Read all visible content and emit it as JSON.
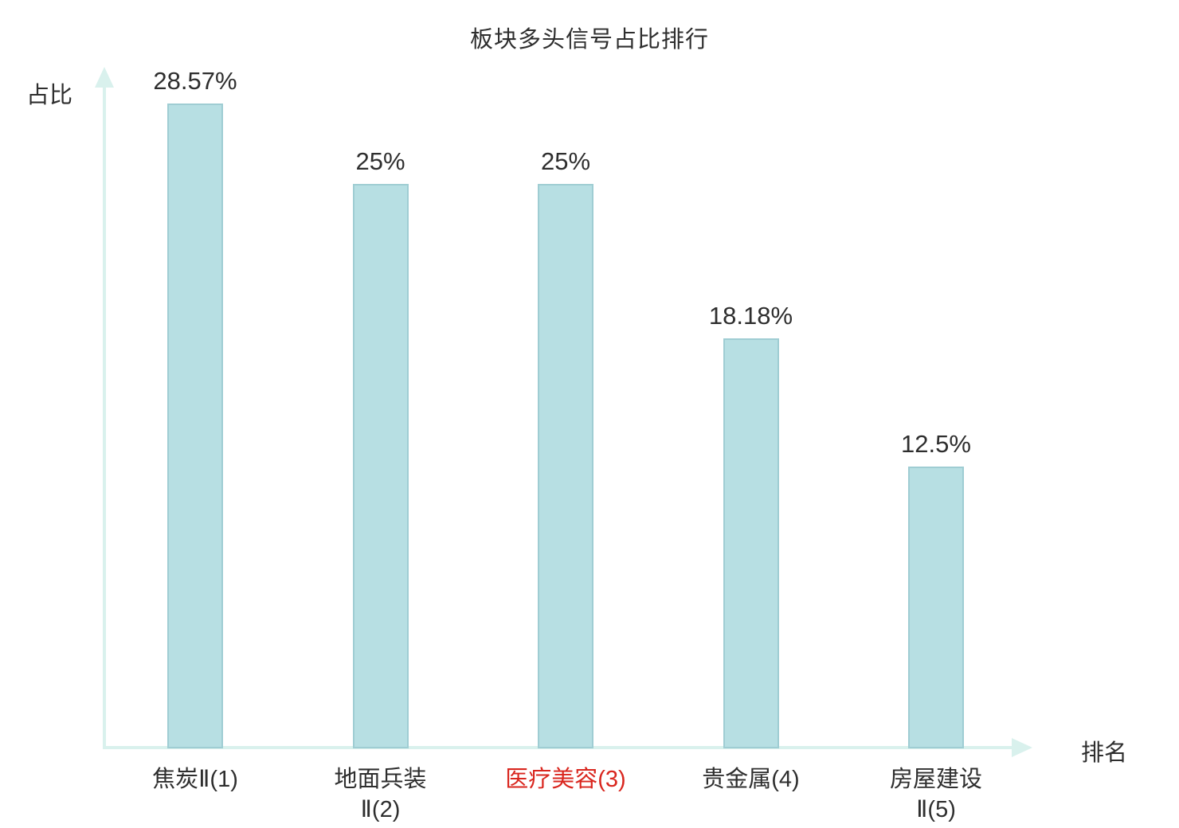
{
  "chart": {
    "title": "板块多头信号占比排行",
    "ylabel": "占比",
    "xlabel": "排名"
  },
  "chart_data": {
    "type": "bar",
    "title": "板块多头信号占比排行",
    "xlabel": "排名",
    "ylabel": "占比",
    "categories": [
      "焦炭Ⅱ(1)",
      "地面兵装Ⅱ(2)",
      "医疗美容(3)",
      "贵金属(4)",
      "房屋建设Ⅱ(5)"
    ],
    "category_lines": [
      [
        "焦炭Ⅱ(1)"
      ],
      [
        "地面兵装",
        "Ⅱ(2)"
      ],
      [
        "医疗美容(3)"
      ],
      [
        "贵金属(4)"
      ],
      [
        "房屋建设",
        "Ⅱ(5)"
      ]
    ],
    "values": [
      28.57,
      25,
      25,
      18.18,
      12.5
    ],
    "value_labels": [
      "28.57%",
      "25%",
      "25%",
      "18.18%",
      "12.5%"
    ],
    "highlight_index": 2,
    "highlight_color": "#d9261e",
    "bar_color": "#b7dfe3",
    "bar_border_color": "#9fcdd3",
    "axis_color": "#d9f1ed",
    "text_color": "#2e2e2e",
    "ylim": [
      0,
      28.57
    ],
    "grid": false,
    "legend": false
  }
}
